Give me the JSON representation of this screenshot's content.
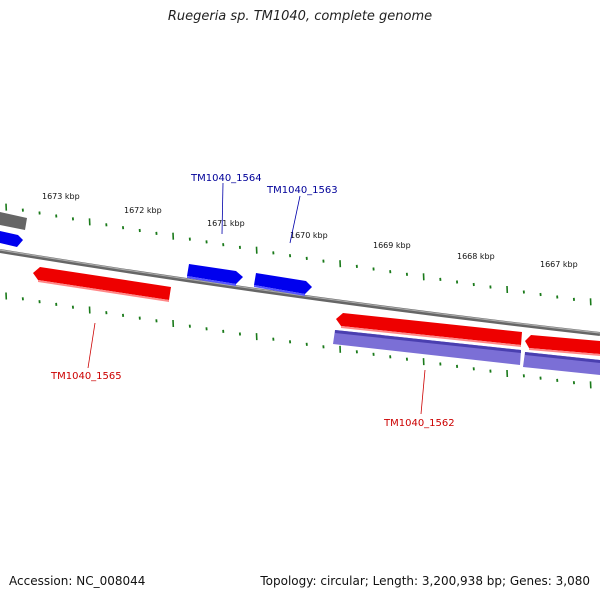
{
  "title": "Ruegeria sp. TM1040, complete genome",
  "footer": {
    "accession": "Accession: NC_008044",
    "summary": "Topology: circular; Length: 3,200,938 bp; Genes: 3,080"
  },
  "colors": {
    "forward_gene": "#0000ee",
    "reverse_gene": "#ee0000",
    "cds_track": "#7b6fd6",
    "backbone": "#888888",
    "ticks": "#1a7a1a",
    "label_blue": "#000099",
    "label_red": "#cc0000"
  },
  "tick_labels": [
    "1673 kbp",
    "1672 kbp",
    "1671 kbp",
    "1670 kbp",
    "1669 kbp",
    "1668 kbp",
    "1667 kbp"
  ],
  "gene_labels": {
    "g1564": "TM1040_1564",
    "g1563": "TM1040_1563",
    "g1565": "TM1040_1565",
    "g1562": "TM1040_1562"
  }
}
